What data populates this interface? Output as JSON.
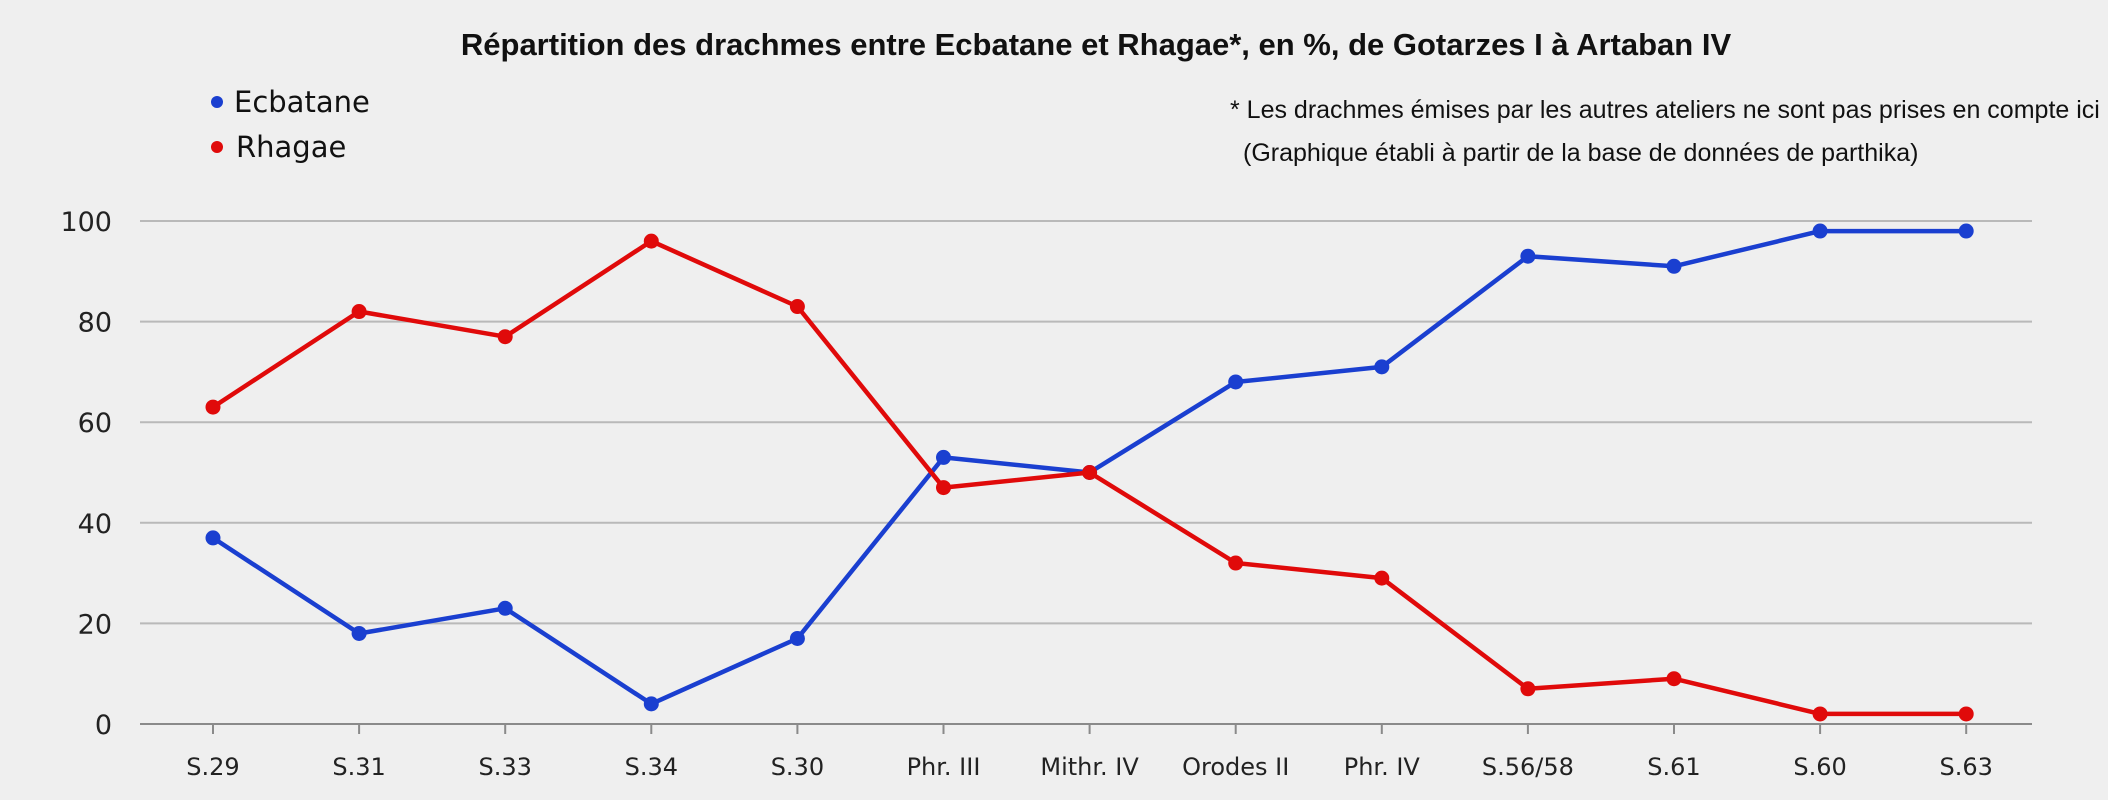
{
  "chart_data": {
    "type": "line",
    "title": "Répartition des drachmes entre Ecbatane et Rhagae*, en %, de Gotarzes I à Artaban IV",
    "notes": [
      "* Les drachmes émises par les autres ateliers ne sont pas prises en compte ici",
      "(Graphique établi à partir de la base de données de parthika)"
    ],
    "categories": [
      "S.29",
      "S.31",
      "S.33",
      "S.34",
      "S.30",
      "Phr. III",
      "Mithr. IV",
      "Orodes II",
      "Phr. IV",
      "S.56/58",
      "S.61",
      "S.60",
      "S.63"
    ],
    "series": [
      {
        "name": "Ecbatane",
        "color": "#1a3fd0",
        "values": [
          37,
          18,
          23,
          4,
          17,
          53,
          50,
          68,
          71,
          93,
          91,
          98,
          98
        ]
      },
      {
        "name": "Rhagae",
        "color": "#e00a0a",
        "values": [
          63,
          82,
          77,
          96,
          83,
          47,
          50,
          32,
          29,
          7,
          9,
          2,
          2
        ]
      }
    ],
    "ylim": [
      0,
      100
    ],
    "yticks": [
      0,
      20,
      40,
      60,
      80,
      100
    ],
    "xlabel": "",
    "ylabel": "",
    "grid": true,
    "legend_position": "top-left"
  }
}
